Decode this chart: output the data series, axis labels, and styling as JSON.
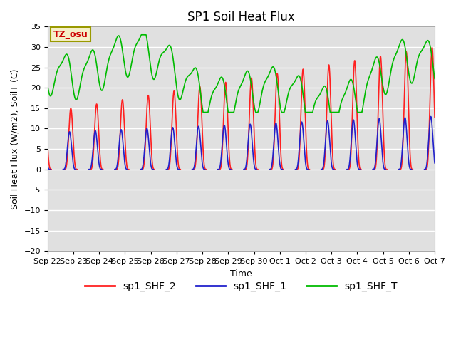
{
  "title": "SP1 Soil Heat Flux",
  "xlabel": "Time",
  "ylabel": "Soil Heat Flux (W/m2), SoilT (C)",
  "ylim": [
    -20,
    35
  ],
  "yticks": [
    -20,
    -15,
    -10,
    -5,
    0,
    5,
    10,
    15,
    20,
    25,
    30,
    35
  ],
  "bg_color": "#e0e0e0",
  "annotation_text": "TZ_osu",
  "annotation_color": "#cc0000",
  "annotation_bg": "#f5f0c8",
  "line_colors": {
    "shf2": "#ff2020",
    "shf1": "#2020cc",
    "shft": "#00bb00"
  },
  "legend_labels": [
    "sp1_SHF_2",
    "sp1_SHF_1",
    "sp1_SHF_T"
  ],
  "num_days": 15,
  "tick_labels": [
    "Sep 22",
    "Sep 23",
    "Sep 24",
    "Sep 25",
    "Sep 26",
    "Sep 27",
    "Sep 28",
    "Sep 29",
    "Sep 30",
    "Oct 1",
    "Oct 2",
    "Oct 3",
    "Oct 4",
    "Oct 5",
    "Oct 6",
    "Oct 7"
  ],
  "line_width": 1.2,
  "font_size_title": 12,
  "font_size_labels": 9,
  "font_size_ticks": 8,
  "font_size_legend": 10
}
